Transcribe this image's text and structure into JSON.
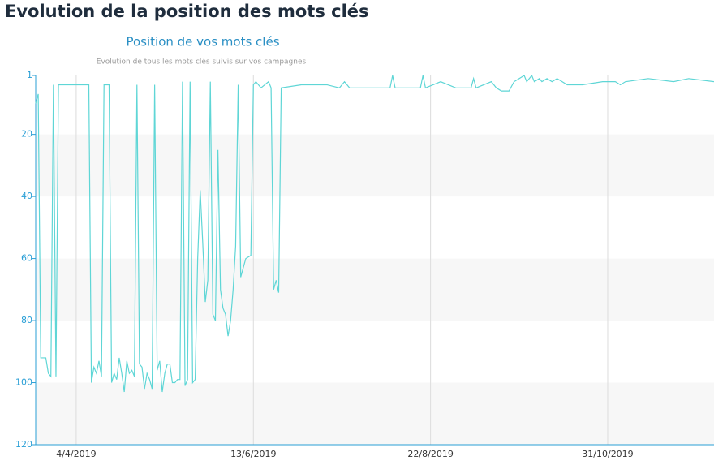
{
  "heading": "Evolution de la position des mots clés",
  "chart_data": {
    "type": "line",
    "title": "Position de vos mots clés",
    "subtitle": "Evolution de tous les mots clés suivis sur vos campagnes",
    "x": [
      "2019-03-19",
      "2019-03-20",
      "2019-03-21",
      "2019-03-23",
      "2019-03-24",
      "2019-03-25",
      "2019-03-26",
      "2019-03-27",
      "2019-03-28",
      "2019-04-09",
      "2019-04-10",
      "2019-04-11",
      "2019-04-12",
      "2019-04-13",
      "2019-04-14",
      "2019-04-15",
      "2019-04-17",
      "2019-04-18",
      "2019-04-19",
      "2019-04-20",
      "2019-04-21",
      "2019-04-22",
      "2019-04-23",
      "2019-04-24",
      "2019-04-25",
      "2019-04-26",
      "2019-04-27",
      "2019-04-28",
      "2019-04-29",
      "2019-04-30",
      "2019-05-01",
      "2019-05-02",
      "2019-05-03",
      "2019-05-04",
      "2019-05-05",
      "2019-05-06",
      "2019-05-07",
      "2019-05-08",
      "2019-05-09",
      "2019-05-10",
      "2019-05-11",
      "2019-05-12",
      "2019-05-13",
      "2019-05-14",
      "2019-05-15",
      "2019-05-16",
      "2019-05-17",
      "2019-05-18",
      "2019-05-19",
      "2019-05-20",
      "2019-05-21",
      "2019-05-22",
      "2019-05-23",
      "2019-05-24",
      "2019-05-25",
      "2019-05-26",
      "2019-05-27",
      "2019-05-28",
      "2019-05-29",
      "2019-05-30",
      "2019-05-31",
      "2019-06-01",
      "2019-06-02",
      "2019-06-03",
      "2019-06-04",
      "2019-06-05",
      "2019-06-06",
      "2019-06-07",
      "2019-06-08",
      "2019-06-09",
      "2019-06-10",
      "2019-06-12",
      "2019-06-13",
      "2019-06-14",
      "2019-06-16",
      "2019-06-19",
      "2019-06-20",
      "2019-06-21",
      "2019-06-22",
      "2019-06-23",
      "2019-06-24",
      "2019-07-02",
      "2019-07-12",
      "2019-07-17",
      "2019-07-19",
      "2019-07-21",
      "2019-08-06",
      "2019-08-07",
      "2019-08-08",
      "2019-08-18",
      "2019-08-19",
      "2019-08-20",
      "2019-08-26",
      "2019-09-01",
      "2019-09-07",
      "2019-09-08",
      "2019-09-09",
      "2019-09-15",
      "2019-09-17",
      "2019-09-19",
      "2019-09-22",
      "2019-09-24",
      "2019-09-28",
      "2019-09-29",
      "2019-10-01",
      "2019-10-02",
      "2019-10-04",
      "2019-10-05",
      "2019-10-07",
      "2019-10-09",
      "2019-10-11",
      "2019-10-13",
      "2019-10-15",
      "2019-10-21",
      "2019-10-29",
      "2019-11-03",
      "2019-11-05",
      "2019-11-07",
      "2019-11-16",
      "2019-11-26",
      "2019-12-02",
      "2019-12-12"
    ],
    "series": [
      {
        "color": "#5fd6d6",
        "values": [
          10,
          7,
          92,
          92,
          97,
          98,
          4,
          98,
          4,
          4,
          100,
          95,
          97,
          93,
          98,
          4,
          4,
          100,
          97,
          99,
          92,
          97,
          103,
          93,
          97,
          96,
          98,
          4,
          94,
          95,
          102,
          97,
          99,
          102,
          4,
          96,
          93,
          103,
          97,
          94,
          94,
          100,
          100,
          99,
          99,
          3,
          101,
          99,
          3,
          100,
          99,
          60,
          38,
          55,
          74,
          67,
          3,
          78,
          80,
          25,
          70,
          76,
          78,
          85,
          80,
          70,
          56,
          4,
          66,
          63,
          60,
          59,
          4,
          3,
          5,
          3,
          5,
          70,
          67,
          71,
          5,
          4,
          4,
          5,
          3,
          5,
          5,
          1,
          5,
          5,
          1,
          5,
          3,
          5,
          5,
          2,
          5,
          3,
          5,
          6,
          6,
          3,
          1,
          3,
          1,
          3,
          2,
          3,
          2,
          3,
          2,
          3,
          4,
          4,
          3,
          3,
          4,
          3,
          2,
          3,
          2,
          3
        ]
      }
    ],
    "xlim": [
      "2019-03-19",
      "2019-12-12"
    ],
    "xticks": [
      {
        "value": "2019-04-04",
        "label": "4/4/2019"
      },
      {
        "value": "2019-06-13",
        "label": "13/6/2019"
      },
      {
        "value": "2019-08-22",
        "label": "22/8/2019"
      },
      {
        "value": "2019-10-31",
        "label": "31/10/2019"
      }
    ],
    "ylim": [
      1,
      120
    ],
    "y_inverted": true,
    "yticks": [
      1,
      20,
      40,
      60,
      80,
      100,
      120
    ],
    "grid": true
  }
}
